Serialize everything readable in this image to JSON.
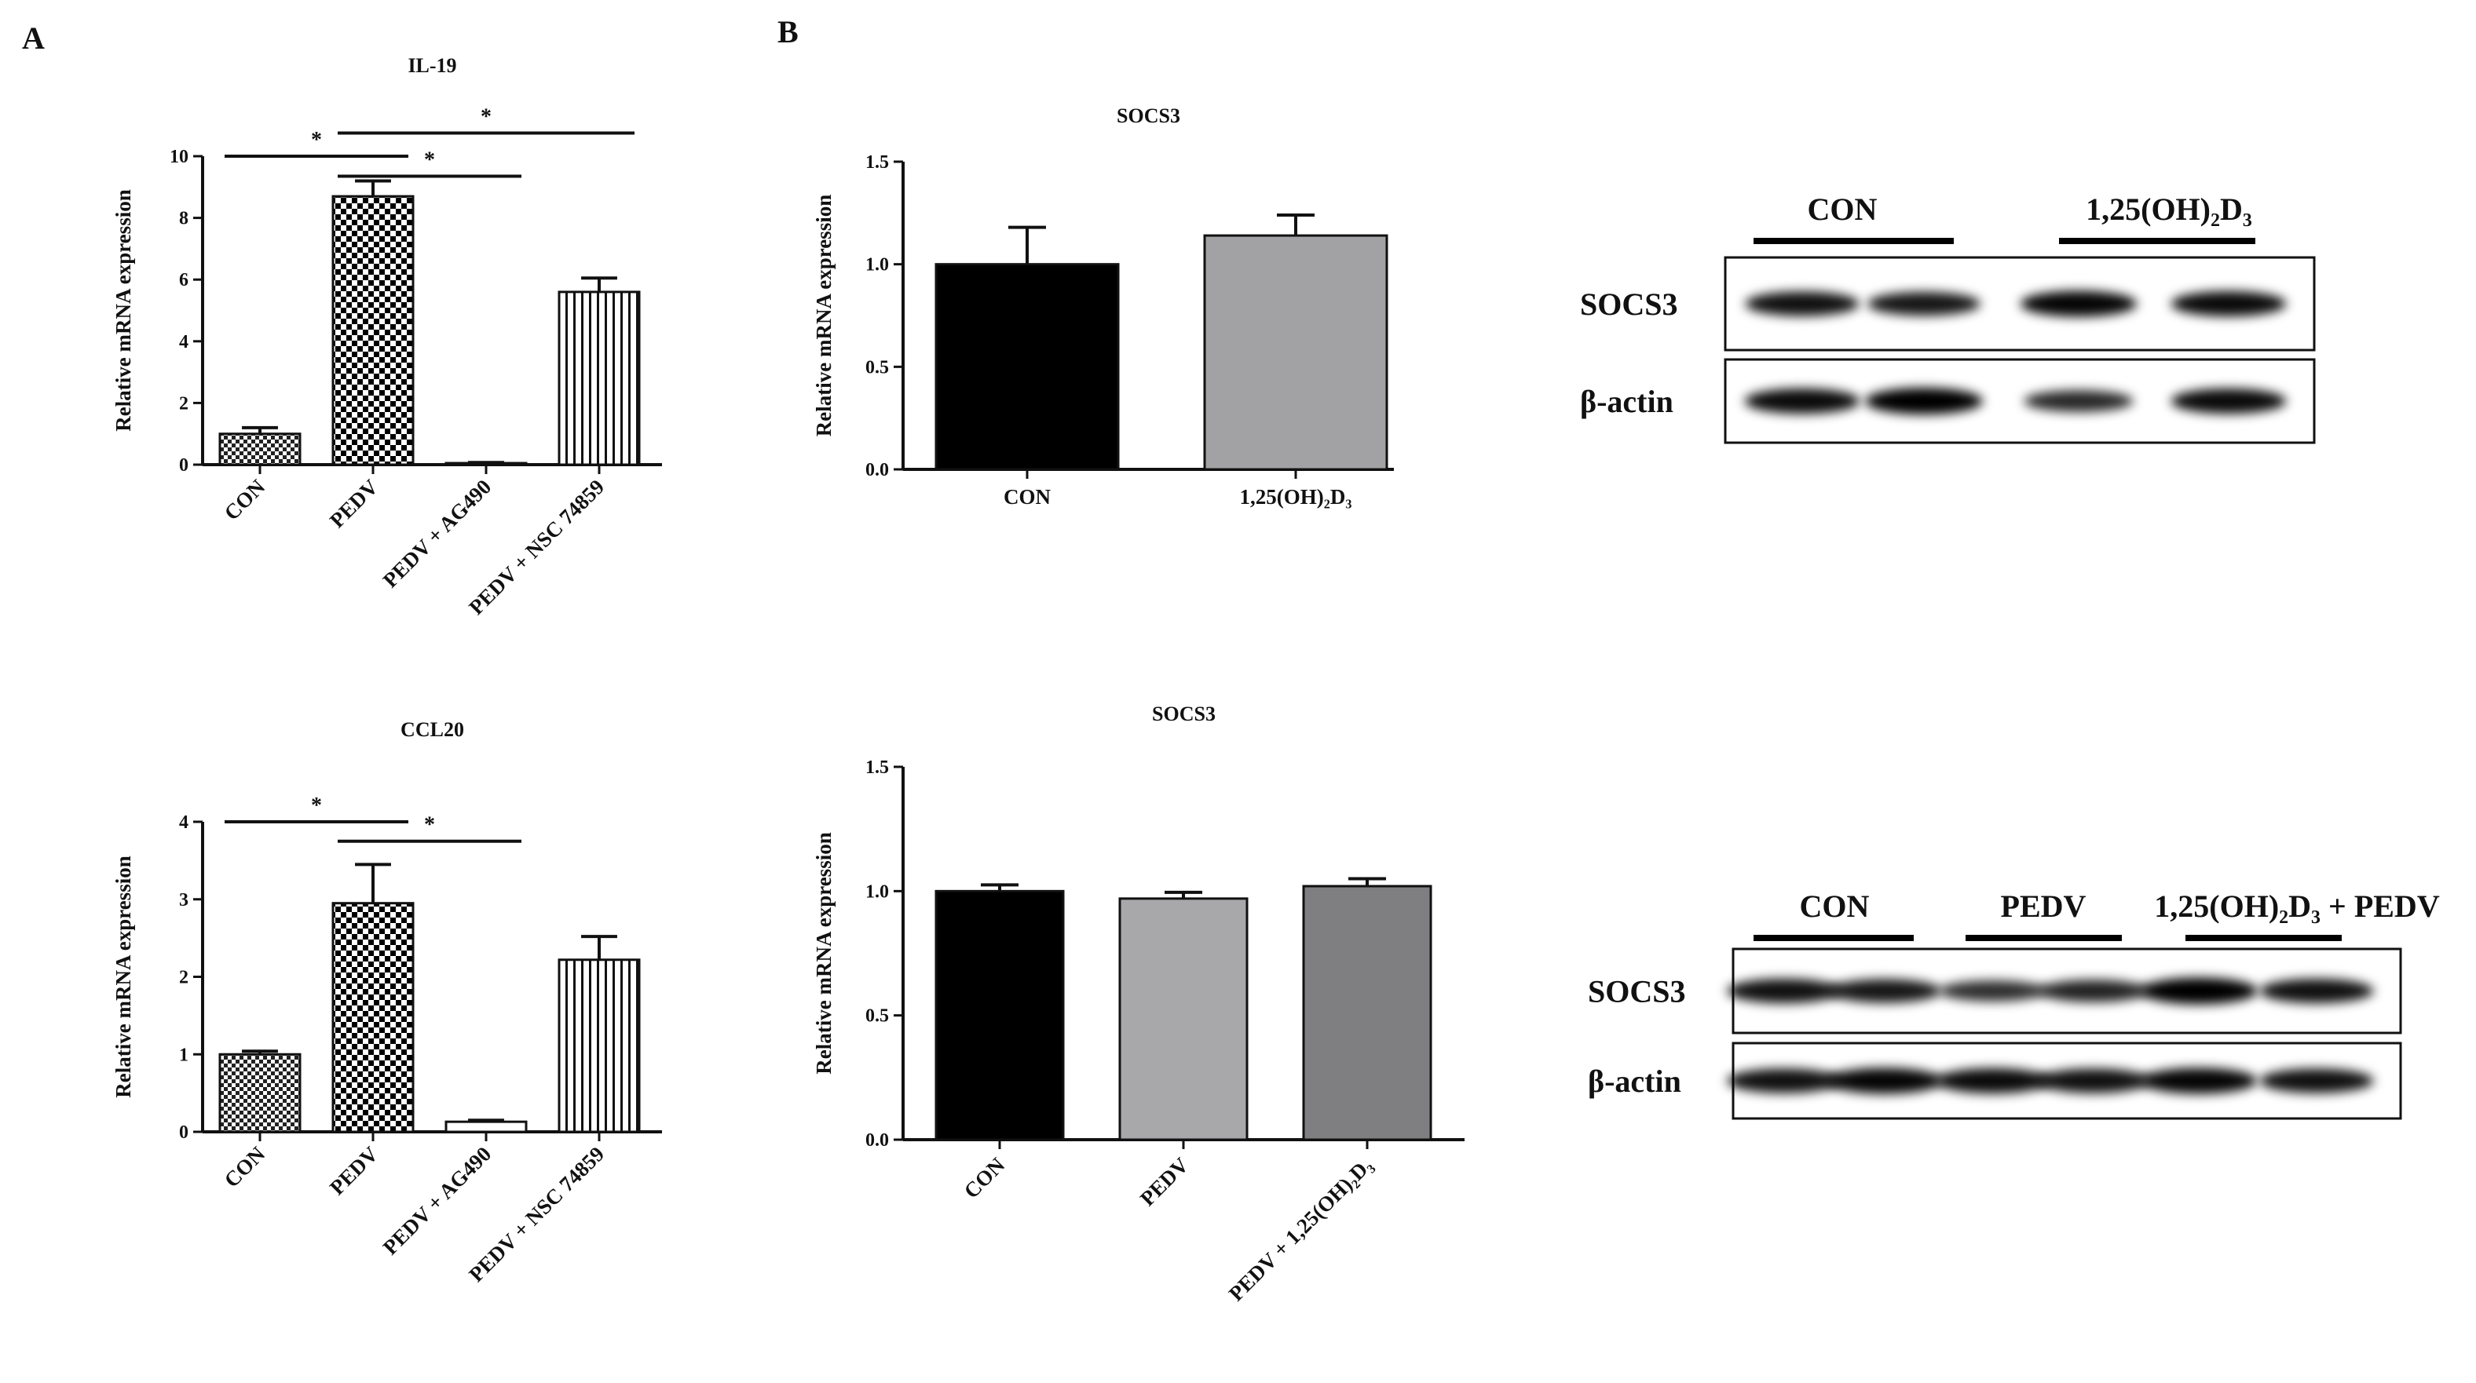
{
  "panels": {
    "a": "A",
    "b": "B"
  },
  "chart_data": [
    {
      "id": "il19",
      "type": "bar",
      "title": "IL-19",
      "ylabel": "Relative mRNA expression",
      "categories": [
        "CON",
        "PEDV",
        "PEDV + AG490",
        "PEDV + NSC 74859"
      ],
      "values": [
        1.0,
        8.7,
        0.05,
        5.6
      ],
      "errors": [
        0.2,
        0.5,
        0.02,
        0.45
      ],
      "ylim": [
        0,
        10
      ],
      "yticks": [
        "0",
        "2",
        "4",
        "6",
        "8",
        "10"
      ],
      "fills": [
        "checker-fine",
        "checker-coarse",
        "white",
        "vertical-stripes"
      ],
      "significance": [
        {
          "from": 0,
          "to": 1,
          "label": "*"
        },
        {
          "from": 1,
          "to": 2,
          "label": "*"
        },
        {
          "from": 1,
          "to": 3,
          "label": "*"
        }
      ]
    },
    {
      "id": "ccl20",
      "type": "bar",
      "title": "CCL20",
      "ylabel": "Relative mRNA expression",
      "categories": [
        "CON",
        "PEDV",
        "PEDV + AG490",
        "PEDV + NSC 74859"
      ],
      "values": [
        1.0,
        2.95,
        0.13,
        2.22
      ],
      "errors": [
        0.04,
        0.5,
        0.02,
        0.3
      ],
      "ylim": [
        0,
        4
      ],
      "yticks": [
        "0",
        "1",
        "2",
        "3",
        "4"
      ],
      "fills": [
        "checker-fine",
        "checker-coarse",
        "white",
        "vertical-stripes"
      ],
      "significance": [
        {
          "from": 0,
          "to": 1,
          "label": "*"
        },
        {
          "from": 1,
          "to": 2,
          "label": "*"
        }
      ]
    },
    {
      "id": "socs3-top",
      "type": "bar",
      "title": "SOCS3",
      "ylabel": "Relative mRNA expression",
      "categories": [
        "CON",
        "1,25(OH)₂D₃"
      ],
      "values": [
        1.0,
        1.14
      ],
      "errors": [
        0.18,
        0.1
      ],
      "ylim": [
        0,
        1.5
      ],
      "yticks": [
        "0.0",
        "0.5",
        "1.0",
        "1.5"
      ],
      "colors": [
        "#000000",
        "#a2a2a4"
      ],
      "significance": []
    },
    {
      "id": "socs3-bottom",
      "type": "bar",
      "title": "SOCS3",
      "ylabel": "Relative mRNA expression",
      "categories": [
        "CON",
        "PEDV",
        "PEDV + 1,25(OH)₂D₃"
      ],
      "values": [
        1.0,
        0.97,
        1.02
      ],
      "errors": [
        0.025,
        0.025,
        0.03
      ],
      "ylim": [
        0,
        1.5
      ],
      "yticks": [
        "0.0",
        "0.5",
        "1.0",
        "1.5"
      ],
      "colors": [
        "#000000",
        "#a8a8aa",
        "#7f7f81"
      ],
      "significance": []
    }
  ],
  "blots": [
    {
      "id": "blot-top",
      "groups": [
        "CON",
        "1,25(OH)₂D₃"
      ],
      "rows": [
        {
          "label": "SOCS3",
          "band_intensity": [
            0.85,
            0.8,
            0.95,
            0.9
          ]
        },
        {
          "label": "β-actin",
          "band_intensity": [
            0.9,
            1.0,
            0.65,
            0.9
          ]
        }
      ]
    },
    {
      "id": "blot-bottom",
      "groups": [
        "CON",
        "PEDV",
        "1,25(OH)₂D₃ + PEDV"
      ],
      "rows": [
        {
          "label": "SOCS3",
          "band_intensity": [
            0.85,
            0.8,
            0.6,
            0.7,
            1.0,
            0.85
          ]
        },
        {
          "label": "β-actin",
          "band_intensity": [
            0.85,
            0.95,
            0.9,
            0.85,
            0.95,
            0.85
          ]
        }
      ]
    }
  ]
}
